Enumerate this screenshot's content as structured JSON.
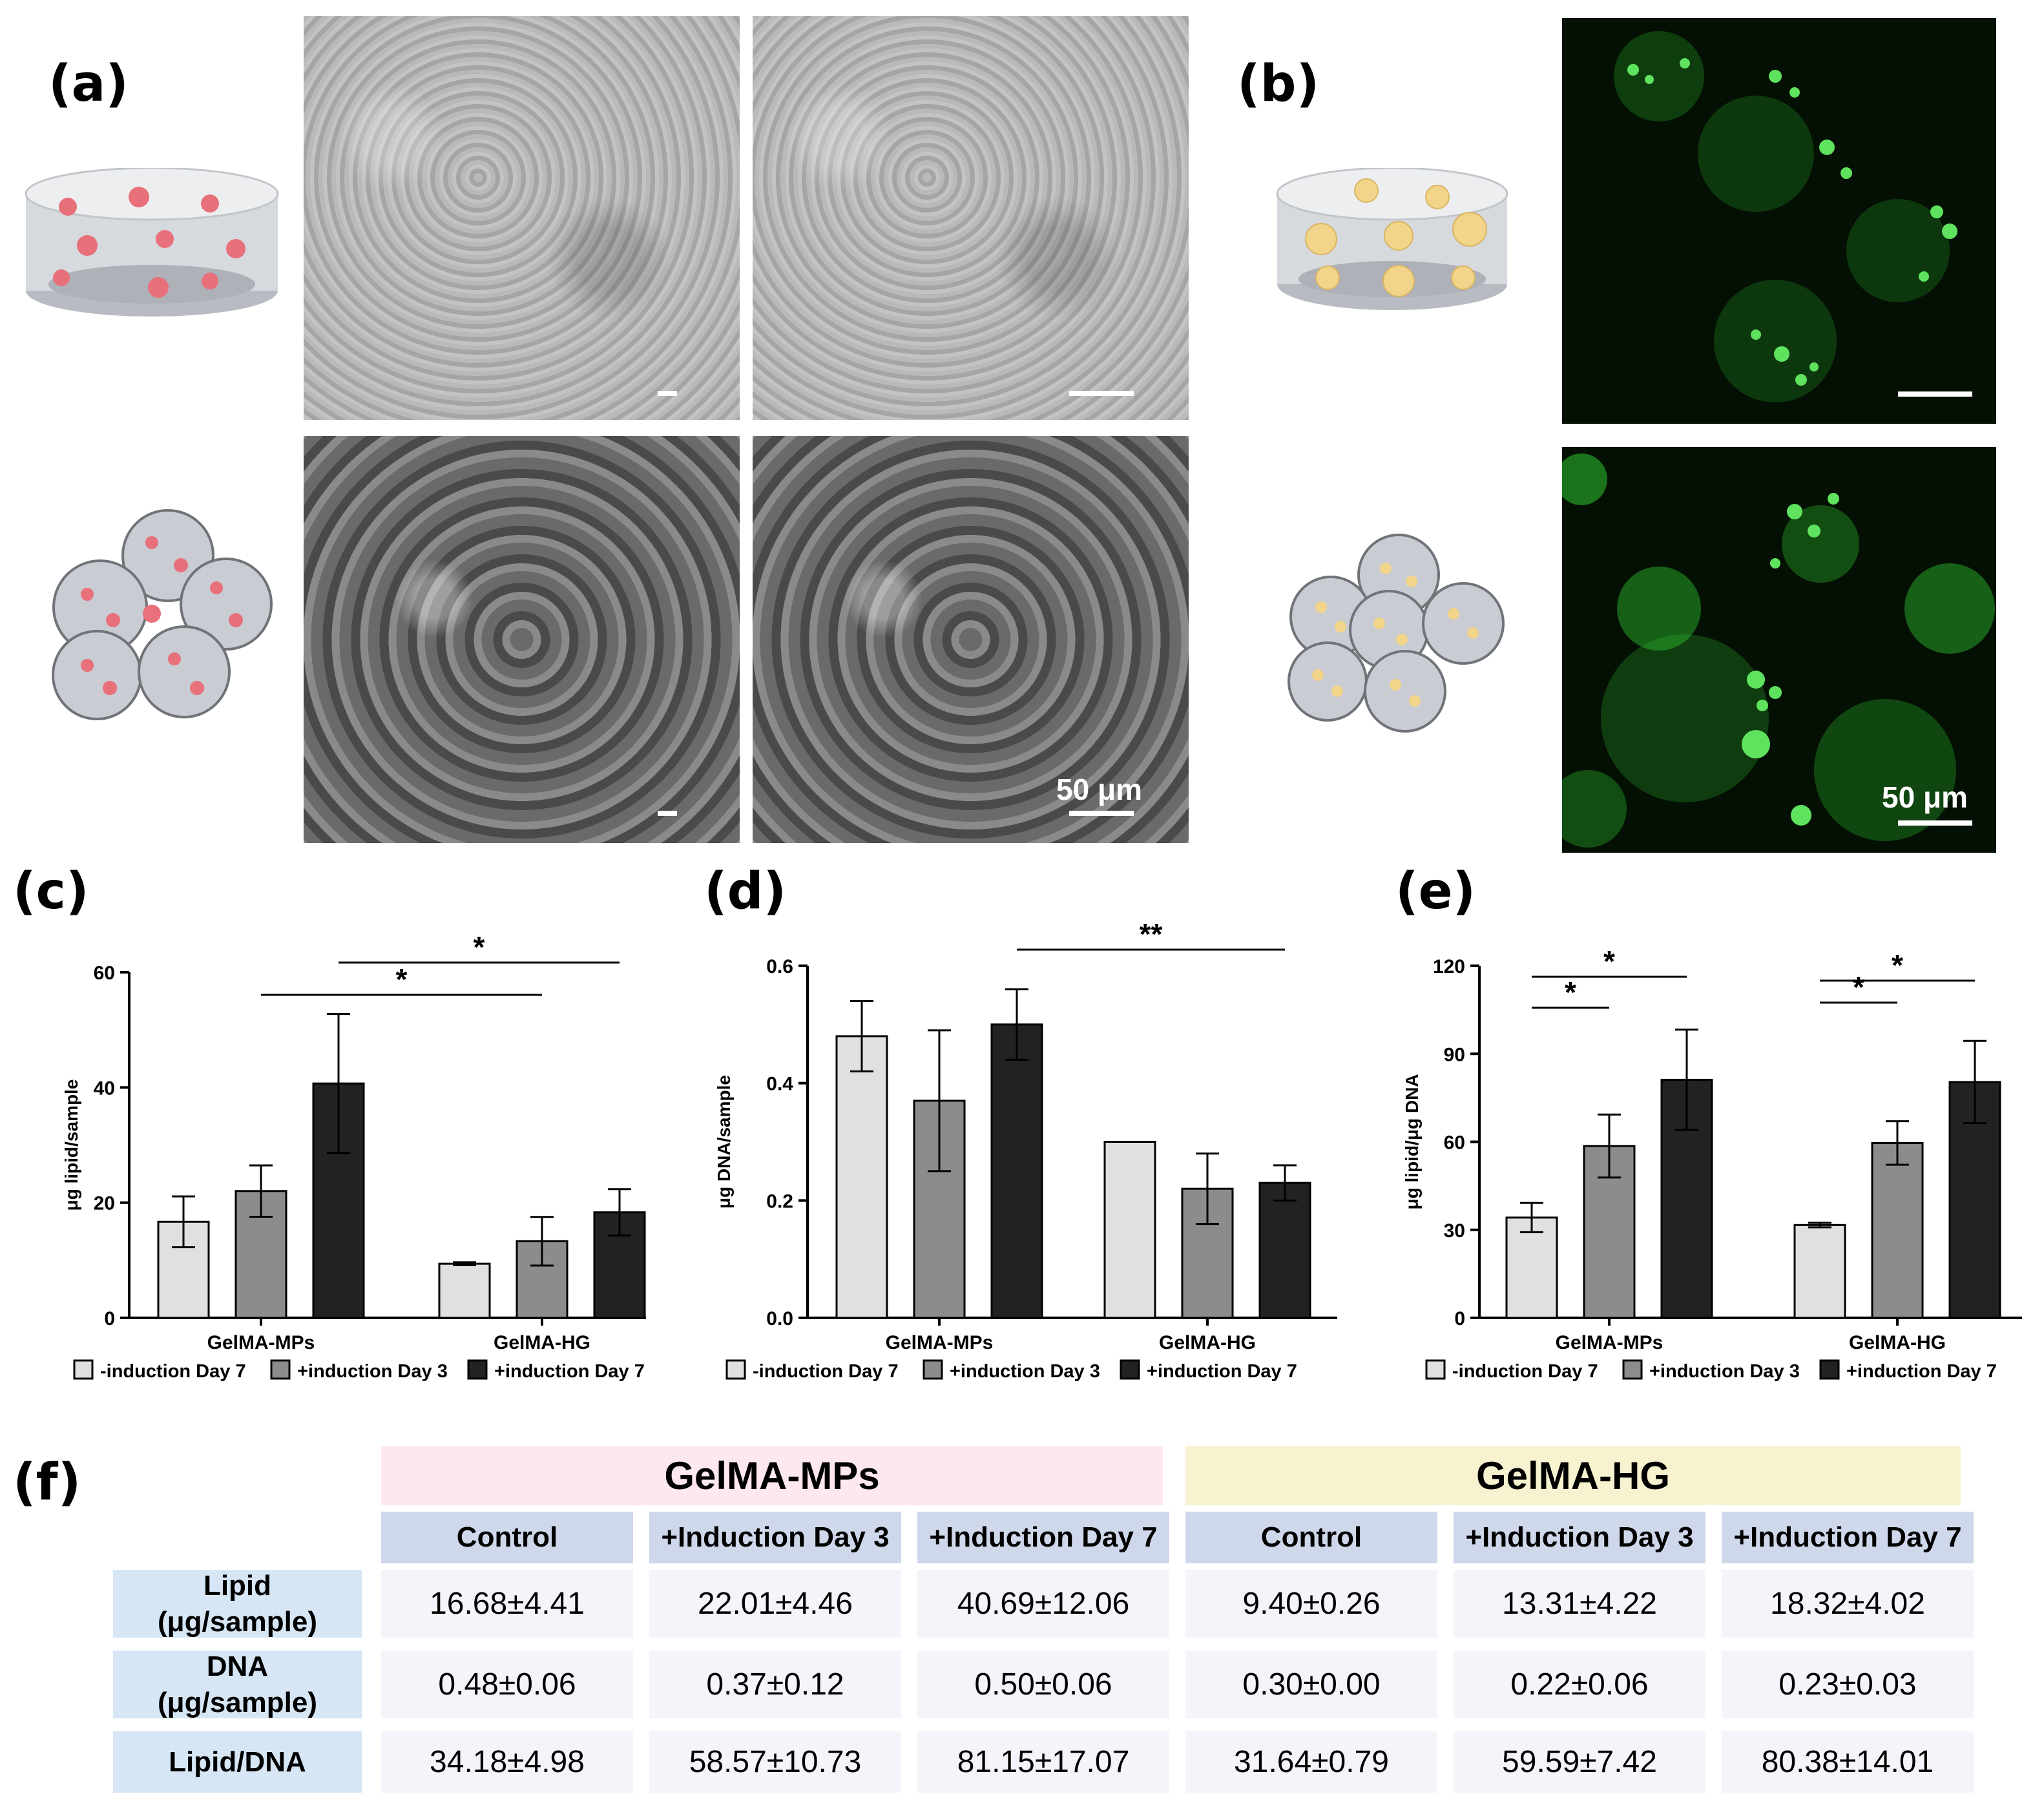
{
  "panels": {
    "a": "(a)",
    "b": "(b)",
    "c": "(c)",
    "d": "(d)",
    "e": "(e)",
    "f": "(f)"
  },
  "scale_bar": "50 μm",
  "colors": {
    "minus_d7": "#e0e0e0",
    "plus_d3": "#8c8c8c",
    "plus_d7": "#222222",
    "cell_red": "#e8707a",
    "lipid_yellow": "#f2d48a",
    "fluor_green": "#2fc42f",
    "header_pink": "#fde8ee",
    "header_yellow": "#f7f2cf"
  },
  "legend": [
    "-induction Day 7",
    "+induction Day 3",
    "+induction Day 7"
  ],
  "chart_data": [
    {
      "type": "bar",
      "panel": "c",
      "categories": [
        "GelMA-MPs",
        "GelMA-HG"
      ],
      "series": [
        {
          "name": "-induction Day 7",
          "values": [
            16.68,
            9.4
          ],
          "errors": [
            4.41,
            0.26
          ]
        },
        {
          "name": "+induction Day 3",
          "values": [
            22.01,
            13.31
          ],
          "errors": [
            4.46,
            4.22
          ]
        },
        {
          "name": "+induction Day 7",
          "values": [
            40.69,
            18.32
          ],
          "errors": [
            12.06,
            4.02
          ]
        }
      ],
      "ylabel": "μg lipid/sample",
      "ylim": [
        0,
        60
      ],
      "yticks": [
        "0",
        "20",
        "40",
        "60"
      ],
      "significance": [
        {
          "from": [
            "GelMA-MPs",
            "+induction Day 7"
          ],
          "to": [
            "GelMA-HG",
            "+induction Day 7"
          ],
          "label": "*"
        },
        {
          "from": [
            "GelMA-MPs",
            "+induction Day 3"
          ],
          "to": [
            "GelMA-HG",
            "+induction Day 3"
          ],
          "label": "*"
        }
      ],
      "legend_position": "bottom"
    },
    {
      "type": "bar",
      "panel": "d",
      "categories": [
        "GelMA-MPs",
        "GelMA-HG"
      ],
      "series": [
        {
          "name": "-induction Day 7",
          "values": [
            0.48,
            0.3
          ],
          "errors": [
            0.06,
            0.0
          ]
        },
        {
          "name": "+induction Day 3",
          "values": [
            0.37,
            0.22
          ],
          "errors": [
            0.12,
            0.06
          ]
        },
        {
          "name": "+induction Day 7",
          "values": [
            0.5,
            0.23
          ],
          "errors": [
            0.06,
            0.03
          ]
        }
      ],
      "ylabel": "μg DNA/sample",
      "ylim": [
        0,
        0.6
      ],
      "yticks": [
        "0.0",
        "0.2",
        "0.4",
        "0.6"
      ],
      "significance": [
        {
          "from": [
            "GelMA-MPs",
            "+induction Day 7"
          ],
          "to": [
            "GelMA-HG",
            "+induction Day 7"
          ],
          "label": "**"
        }
      ],
      "legend_position": "bottom"
    },
    {
      "type": "bar",
      "panel": "e",
      "categories": [
        "GelMA-MPs",
        "GelMA-HG"
      ],
      "series": [
        {
          "name": "-induction Day 7",
          "values": [
            34.18,
            31.64
          ],
          "errors": [
            4.98,
            0.79
          ]
        },
        {
          "name": "+induction Day 3",
          "values": [
            58.57,
            59.59
          ],
          "errors": [
            10.73,
            7.42
          ]
        },
        {
          "name": "+induction Day 7",
          "values": [
            81.15,
            80.38
          ],
          "errors": [
            17.07,
            14.01
          ]
        }
      ],
      "ylabel": "μg lipid/μg DNA",
      "ylim": [
        0,
        120
      ],
      "yticks": [
        "0",
        "30",
        "60",
        "90",
        "120"
      ],
      "significance": [
        {
          "from": [
            "GelMA-MPs",
            "-induction Day 7"
          ],
          "to": [
            "GelMA-MPs",
            "+induction Day 7"
          ],
          "label": "*"
        },
        {
          "from": [
            "GelMA-MPs",
            "-induction Day 7"
          ],
          "to": [
            "GelMA-MPs",
            "+induction Day 3"
          ],
          "label": "*"
        },
        {
          "from": [
            "GelMA-HG",
            "-induction Day 7"
          ],
          "to": [
            "GelMA-HG",
            "+induction Day 7"
          ],
          "label": "*"
        },
        {
          "from": [
            "GelMA-HG",
            "-induction Day 7"
          ],
          "to": [
            "GelMA-HG",
            "+induction Day 3"
          ],
          "label": "*"
        }
      ],
      "legend_position": "bottom"
    }
  ],
  "table": {
    "groups": [
      "GelMA-MPs",
      "GelMA-HG"
    ],
    "columns": [
      "Control",
      "+Induction Day 3",
      "+Induction Day 7",
      "Control",
      "+Induction Day 3",
      "+Induction Day 7"
    ],
    "rows": [
      {
        "label1": "Lipid",
        "label2": "(μg/sample)",
        "values": [
          "16.68±4.41",
          "22.01±4.46",
          "40.69±12.06",
          "9.40±0.26",
          "13.31±4.22",
          "18.32±4.02"
        ]
      },
      {
        "label1": "DNA",
        "label2": "(μg/sample)",
        "values": [
          "0.48±0.06",
          "0.37±0.12",
          "0.50±0.06",
          "0.30±0.00",
          "0.22±0.06",
          "0.23±0.03"
        ]
      },
      {
        "label1": "Lipid/DNA",
        "label2": "",
        "values": [
          "34.18±4.98",
          "58.57±10.73",
          "81.15±17.07",
          "31.64±0.79",
          "59.59±7.42",
          "80.38±14.01"
        ]
      }
    ]
  }
}
